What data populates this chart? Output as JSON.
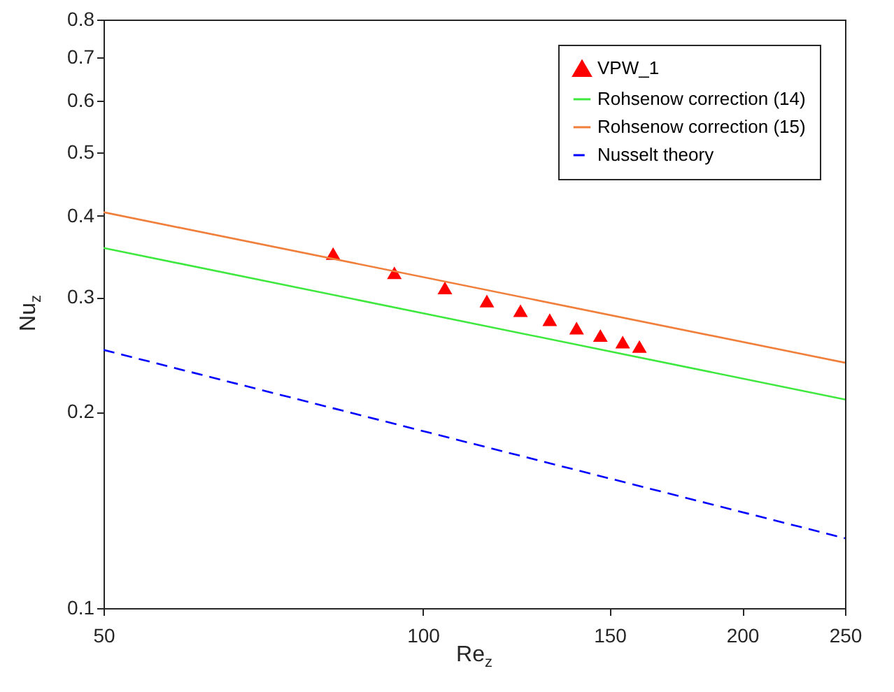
{
  "chart_data": {
    "type": "scatter",
    "xlabel": "Re$_{z}$",
    "ylabel": "Nu$_{z}$",
    "log": "xy",
    "xlim": [
      50,
      250
    ],
    "xticks": [
      50,
      100,
      150,
      200,
      250
    ],
    "ylim": [
      0.1,
      0.8
    ],
    "yticks": [
      0.1,
      0.2,
      0.3,
      0.4,
      0.5,
      0.6,
      0.7,
      0.8
    ],
    "grid": false,
    "legend": "top right",
    "series": [
      {
        "name": "VPW_1",
        "marker": "triangle",
        "color": "#ff0000",
        "x": [
          82.3,
          94.0,
          104.9,
          114.9,
          123.6,
          131.7,
          139.6,
          147.0,
          154.3,
          160.0
        ],
        "values": [
          0.35,
          0.327,
          0.31,
          0.296,
          0.286,
          0.277,
          0.269,
          0.262,
          0.256,
          0.252
        ]
      },
      {
        "name": "Rohsenow correction (14)",
        "type": "line",
        "color": "#3ee83e",
        "line_style": "solid",
        "x": [
          50,
          250
        ],
        "values": [
          0.357,
          0.209
        ]
      },
      {
        "name": "Rohsenow correction (15)",
        "type": "line",
        "color": "#f07f3c",
        "line_style": "solid",
        "x": [
          50,
          250
        ],
        "values": [
          0.405,
          0.238
        ]
      },
      {
        "name": "Nusselt theory",
        "type": "line",
        "color": "#0000ff",
        "line_style": "dashed",
        "x": [
          50,
          250
        ],
        "values": [
          0.249,
          0.128
        ]
      }
    ]
  }
}
